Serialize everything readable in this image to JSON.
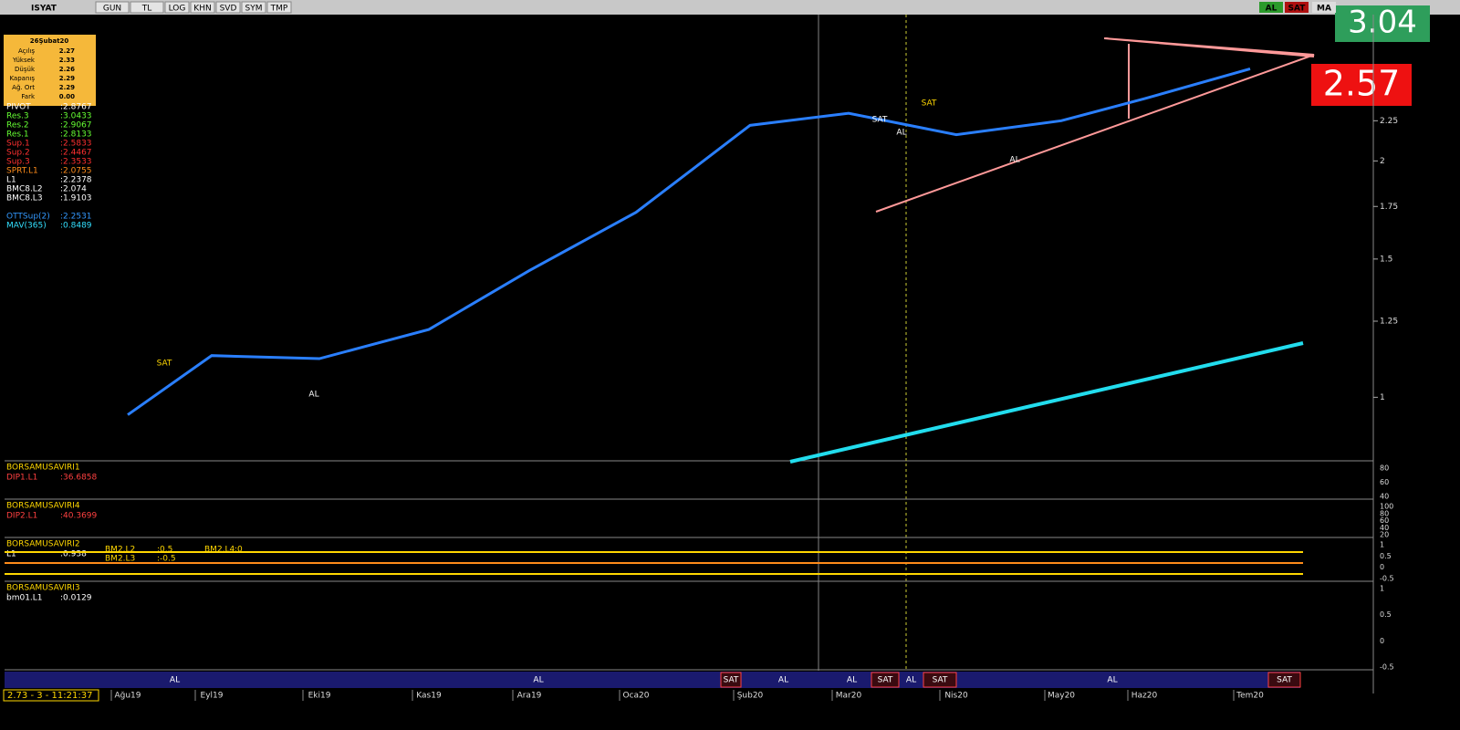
{
  "toolbar": {
    "symbol": "ISYAT",
    "buttons": [
      "GUN",
      "TL",
      "LOG",
      "KHN",
      "SVD",
      "SYM",
      "TMP"
    ],
    "right": [
      "AL",
      "SAT",
      "MA"
    ]
  },
  "big_labels": {
    "upper": "3.04",
    "lower": "2.57"
  },
  "info_box": {
    "date": "26Şubat20",
    "rows": [
      [
        "Açılış",
        "2.27"
      ],
      [
        "Yüksek",
        "2.33"
      ],
      [
        "Düşük",
        "2.26"
      ],
      [
        "Kapanış",
        "2.29"
      ],
      [
        "Ağ. Ort",
        "2.29"
      ],
      [
        "Fark",
        "0.00"
      ]
    ]
  },
  "legend": [
    {
      "name": "PIVOT",
      "value": ":2.8767",
      "color": "#ffffff"
    },
    {
      "name": "Res.3",
      "value": ":3.0433",
      "color": "#66ff33"
    },
    {
      "name": "Res.2",
      "value": ":2.9067",
      "color": "#66ff33"
    },
    {
      "name": "Res.1",
      "value": ":2.8133",
      "color": "#66ff33"
    },
    {
      "name": "Sup.1",
      "value": ":2.5833",
      "color": "#ff3030"
    },
    {
      "name": "Sup.2",
      "value": ":2.4467",
      "color": "#ff3030"
    },
    {
      "name": "Sup.3",
      "value": ":2.3533",
      "color": "#ff3030"
    },
    {
      "name": "SPRT.L1",
      "value": ":2.0755",
      "color": "#ff8c1a"
    },
    {
      "name": "L1",
      "value": ":2.2378",
      "color": "#ffffff"
    },
    {
      "name": "BMC8.L2",
      "value": ":2.074",
      "color": "#ffffff"
    },
    {
      "name": "BMC8.L3",
      "value": ":1.9103",
      "color": "#ffffff"
    },
    {
      "name": "OTTSup(2)",
      "value": ":2.2531",
      "color": "#3399ff"
    },
    {
      "name": "MAV(365)",
      "value": ":0.8489",
      "color": "#33e0ff"
    }
  ],
  "chart_data": {
    "type": "line",
    "log_scale": true,
    "categories": [
      "Ağu19",
      "Eyl19",
      "Eki19",
      "Kas19",
      "Ara19",
      "Oca20",
      "Şub20",
      "Mar20",
      "Nis20",
      "May20",
      "Haz20",
      "Tem20"
    ],
    "series": [
      {
        "name": "OTTSup(2)",
        "color": "#2a7fff",
        "values": [
          0.95,
          1.13,
          1.12,
          1.22,
          1.45,
          1.72,
          2.22,
          2.3,
          2.16,
          2.25,
          2.4,
          2.62
        ]
      }
    ],
    "ylim": [
      0.83,
      3.08
    ],
    "yticks": [
      1,
      1.25,
      1.5,
      1.75,
      2,
      2.25
    ],
    "annotations": [
      "SAT",
      "AL",
      "SAT",
      "AL",
      "SAT",
      "AL"
    ]
  },
  "panels": [
    {
      "title": "BORSAMUSAVIRI1",
      "lines": [
        "DIP1.L1",
        ":36.6858"
      ],
      "ticks": [
        "80",
        "60",
        "40"
      ]
    },
    {
      "title": "BORSAMUSAVIRI4",
      "lines": [
        "DIP2.L1",
        ":40.3699"
      ],
      "ticks": [
        "100",
        "80",
        "60",
        "40",
        "20"
      ]
    },
    {
      "title": "BORSAMUSAVIRI2",
      "lines": [
        "L1",
        ":0.938",
        "BM2.L2",
        ":0.5",
        "BM2.L3",
        ":-0.5",
        "BM2.L4",
        ":0"
      ],
      "ticks": [
        "1",
        "0.5",
        "0",
        "-0.5"
      ]
    },
    {
      "title": "BORSAMUSAVIRI3",
      "lines": [
        "bm01.L1",
        ":0.0129"
      ],
      "ticks": [
        "1",
        "0.5",
        "0",
        "-0.5"
      ]
    }
  ],
  "signals": [
    "AL",
    "AL",
    "SAT",
    "AL",
    "AL",
    "SAT",
    "AL",
    "SAT",
    "AL",
    "SAT"
  ],
  "status": "2.73 - 3 - 11:21:37"
}
